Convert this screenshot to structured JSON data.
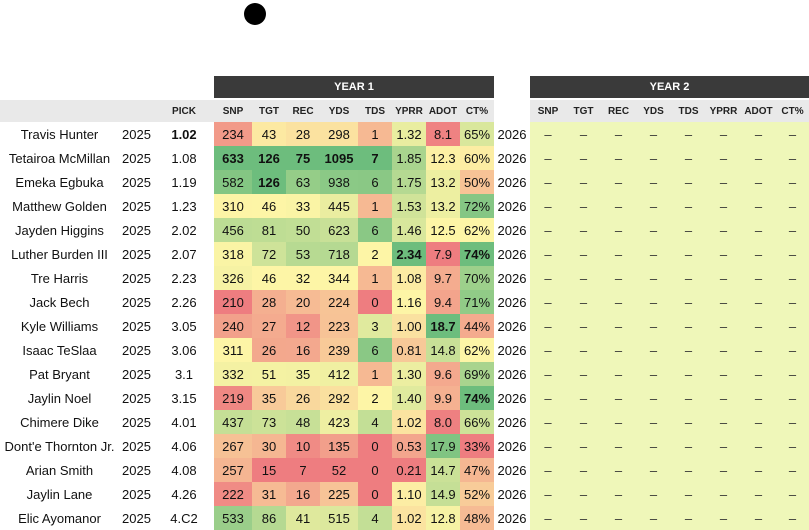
{
  "colors": {
    "header_bg": "#3a3a3a",
    "subheader_bg": "#e9e9e9",
    "year2_fill": "#eff7b9",
    "scale_low": "#ee7d80",
    "scale_mid": "#fdf5a6",
    "scale_high": "#6dbd7d"
  },
  "groups": {
    "year1": "YEAR 1",
    "year2": "YEAR 2"
  },
  "columns": {
    "pick": "PICK",
    "year1": [
      "SNP",
      "TGT",
      "REC",
      "YDS",
      "TDS",
      "YPRR",
      "ADOT",
      "CT%"
    ],
    "year2": [
      "SNP",
      "TGT",
      "REC",
      "YDS",
      "TDS",
      "YPRR",
      "ADOT",
      "CT%"
    ]
  },
  "placeholder": "–",
  "players": [
    {
      "name": "Travis Hunter",
      "year": "2025",
      "pick": "1.02",
      "pick_bold": true,
      "snp": "234",
      "tgt": "43",
      "rec": "28",
      "yds": "298",
      "tds": "1",
      "yprr": "1.32",
      "adot": "8.1",
      "ct": "65%",
      "year2": "2026"
    },
    {
      "name": "Tetairoa McMillan",
      "year": "2025",
      "pick": "1.08",
      "snp": "633",
      "tgt": "126",
      "rec": "75",
      "yds": "1095",
      "tds": "7",
      "yprr": "1.85",
      "adot": "12.3",
      "ct": "60%",
      "year2": "2026"
    },
    {
      "name": "Emeka Egbuka",
      "year": "2025",
      "pick": "1.19",
      "snp": "582",
      "tgt": "126",
      "rec": "63",
      "yds": "938",
      "tds": "6",
      "yprr": "1.75",
      "adot": "13.2",
      "ct": "50%",
      "year2": "2026"
    },
    {
      "name": "Matthew Golden",
      "year": "2025",
      "pick": "1.23",
      "snp": "310",
      "tgt": "46",
      "rec": "33",
      "yds": "445",
      "tds": "1",
      "yprr": "1.53",
      "adot": "13.2",
      "ct": "72%",
      "year2": "2026"
    },
    {
      "name": "Jayden Higgins",
      "year": "2025",
      "pick": "2.02",
      "snp": "456",
      "tgt": "81",
      "rec": "50",
      "yds": "623",
      "tds": "6",
      "yprr": "1.46",
      "adot": "12.5",
      "ct": "62%",
      "year2": "2026"
    },
    {
      "name": "Luther Burden III",
      "year": "2025",
      "pick": "2.07",
      "snp": "318",
      "tgt": "72",
      "rec": "53",
      "yds": "718",
      "tds": "2",
      "yprr": "2.34",
      "adot": "7.9",
      "ct": "74%",
      "year2": "2026"
    },
    {
      "name": "Tre Harris",
      "year": "2025",
      "pick": "2.23",
      "snp": "326",
      "tgt": "46",
      "rec": "32",
      "yds": "344",
      "tds": "1",
      "yprr": "1.08",
      "adot": "9.7",
      "ct": "70%",
      "year2": "2026"
    },
    {
      "name": "Jack Bech",
      "year": "2025",
      "pick": "2.26",
      "snp": "210",
      "tgt": "28",
      "rec": "20",
      "yds": "224",
      "tds": "0",
      "yprr": "1.16",
      "adot": "9.4",
      "ct": "71%",
      "year2": "2026"
    },
    {
      "name": "Kyle Williams",
      "year": "2025",
      "pick": "3.05",
      "snp": "240",
      "tgt": "27",
      "rec": "12",
      "yds": "223",
      "tds": "3",
      "yprr": "1.00",
      "adot": "18.7",
      "ct": "44%",
      "year2": "2026"
    },
    {
      "name": "Isaac TeSlaa",
      "year": "2025",
      "pick": "3.06",
      "snp": "311",
      "tgt": "26",
      "rec": "16",
      "yds": "239",
      "tds": "6",
      "yprr": "0.81",
      "adot": "14.8",
      "ct": "62%",
      "year2": "2026"
    },
    {
      "name": "Pat Bryant",
      "year": "2025",
      "pick": "3.1",
      "snp": "332",
      "tgt": "51",
      "rec": "35",
      "yds": "412",
      "tds": "1",
      "yprr": "1.30",
      "adot": "9.6",
      "ct": "69%",
      "year2": "2026"
    },
    {
      "name": "Jaylin Noel",
      "year": "2025",
      "pick": "3.15",
      "snp": "219",
      "tgt": "35",
      "rec": "26",
      "yds": "292",
      "tds": "2",
      "yprr": "1.40",
      "adot": "9.9",
      "ct": "74%",
      "year2": "2026"
    },
    {
      "name": "Chimere Dike",
      "year": "2025",
      "pick": "4.01",
      "snp": "437",
      "tgt": "73",
      "rec": "48",
      "yds": "423",
      "tds": "4",
      "yprr": "1.02",
      "adot": "8.0",
      "ct": "66%",
      "year2": "2026"
    },
    {
      "name": "Dont'e Thornton Jr.",
      "year": "2025",
      "pick": "4.06",
      "snp": "267",
      "tgt": "30",
      "rec": "10",
      "yds": "135",
      "tds": "0",
      "yprr": "0.53",
      "adot": "17.9",
      "ct": "33%",
      "year2": "2026"
    },
    {
      "name": "Arian Smith",
      "year": "2025",
      "pick": "4.08",
      "snp": "257",
      "tgt": "15",
      "rec": "7",
      "yds": "52",
      "tds": "0",
      "yprr": "0.21",
      "adot": "14.7",
      "ct": "47%",
      "year2": "2026"
    },
    {
      "name": "Jaylin Lane",
      "year": "2025",
      "pick": "4.26",
      "snp": "222",
      "tgt": "31",
      "rec": "16",
      "yds": "225",
      "tds": "0",
      "yprr": "1.10",
      "adot": "14.9",
      "ct": "52%",
      "year2": "2026"
    },
    {
      "name": "Elic Ayomanor",
      "year": "2025",
      "pick": "4.C2",
      "snp": "533",
      "tgt": "86",
      "rec": "41",
      "yds": "515",
      "tds": "4",
      "yprr": "1.02",
      "adot": "12.8",
      "ct": "48%",
      "year2": "2026"
    }
  ],
  "bold_cells": [
    {
      "player": "Tetairoa McMillan",
      "stats": [
        "snp",
        "tgt",
        "rec",
        "yds",
        "tds"
      ]
    },
    {
      "player": "Emeka Egbuka",
      "stats": [
        "tgt"
      ]
    },
    {
      "player": "Luther Burden III",
      "stats": [
        "yprr",
        "ct"
      ]
    },
    {
      "player": "Kyle Williams",
      "stats": [
        "adot"
      ]
    },
    {
      "player": "Jaylin Noel",
      "stats": [
        "ct"
      ]
    }
  ]
}
